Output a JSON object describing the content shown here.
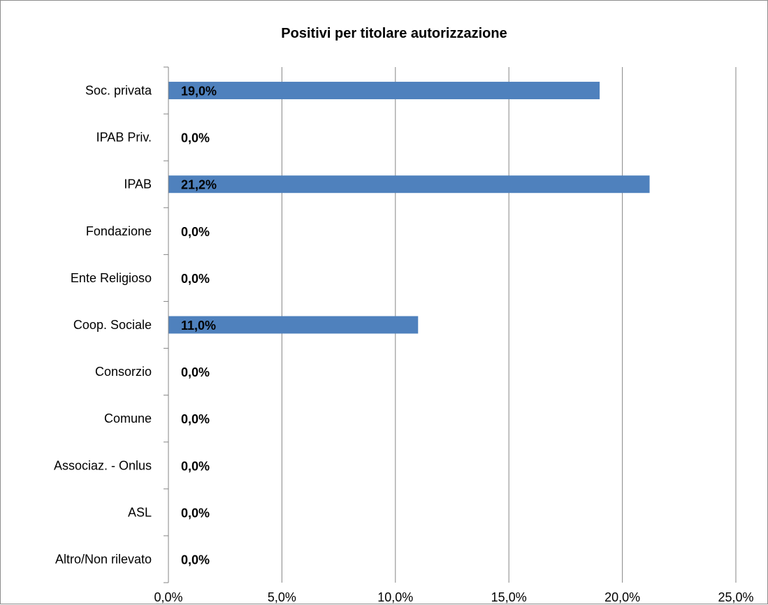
{
  "chart_data": {
    "type": "bar",
    "orientation": "horizontal",
    "title": "Positivi per titolare autorizzazione",
    "categories": [
      "Soc. privata",
      "IPAB Priv.",
      "IPAB",
      "Fondazione",
      "Ente Religioso",
      "Coop. Sociale",
      "Consorzio",
      "Comune",
      "Associaz. - Onlus",
      "ASL",
      "Altro/Non rilevato"
    ],
    "values": [
      19.0,
      0.0,
      21.2,
      0.0,
      0.0,
      11.0,
      0.0,
      0.0,
      0.0,
      0.0,
      0.0
    ],
    "data_labels": [
      "19,0%",
      "0,0%",
      "21,2%",
      "0,0%",
      "0,0%",
      "11,0%",
      "0,0%",
      "0,0%",
      "0,0%",
      "0,0%",
      "0,0%"
    ],
    "x_ticks": [
      "0,0%",
      "5,0%",
      "10,0%",
      "15,0%",
      "20,0%",
      "25,0%"
    ],
    "xlim": [
      0,
      25
    ],
    "grid": true,
    "legend": "none",
    "bar_color": "#4f81bd"
  }
}
